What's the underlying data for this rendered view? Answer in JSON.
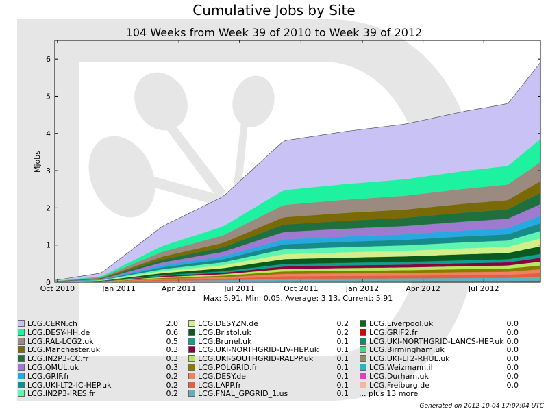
{
  "header": {
    "title": "Cumulative Jobs by Site",
    "subtitle": "104 Weeks from Week 39 of 2010 to Week 39 of 2012"
  },
  "stats_text": "Max: 5.91, Min: 0.05, Average: 3.13, Current: 5.91",
  "footer_text": "Generated on 2012-10-04 17:07:04 UTC",
  "legend": {
    "more_text": "... plus 13 more"
  },
  "chart_data": {
    "type": "area",
    "stacked": true,
    "ylabel": "Mjobs",
    "xlabel": "",
    "ylim": [
      0,
      6.5
    ],
    "yticks": [
      0,
      1,
      2,
      3,
      4,
      5,
      6
    ],
    "x_range": [
      "2010-09-27",
      "2012-09-24"
    ],
    "xticks": [
      {
        "date": "2010-10-01",
        "label": "Oct 2010"
      },
      {
        "date": "2011-01-01",
        "label": "Jan 2011"
      },
      {
        "date": "2011-04-01",
        "label": "Apr 2011"
      },
      {
        "date": "2011-07-01",
        "label": "Jul 2011"
      },
      {
        "date": "2011-10-01",
        "label": "Oct 2011"
      },
      {
        "date": "2012-01-01",
        "label": "Jan 2012"
      },
      {
        "date": "2012-04-01",
        "label": "Apr 2012"
      },
      {
        "date": "2012-07-01",
        "label": "Jul 2012"
      }
    ],
    "x_dates": [
      "2010-09-27",
      "2010-12-06",
      "2011-03-07",
      "2011-06-06",
      "2011-09-05",
      "2011-12-05",
      "2012-03-05",
      "2012-06-04",
      "2012-08-06",
      "2012-09-24"
    ],
    "total": [
      0.05,
      0.25,
      1.5,
      2.3,
      3.8,
      4.05,
      4.25,
      4.6,
      4.8,
      5.91
    ],
    "series": [
      {
        "name": "LCG.CERN.ch",
        "value": "2.0",
        "color": "#c9c2f5"
      },
      {
        "name": "LCG.DESY-HH.de",
        "value": "0.6",
        "color": "#1ef2a0"
      },
      {
        "name": "LCG.RAL-LCG2.uk",
        "value": "0.5",
        "color": "#9a8a80"
      },
      {
        "name": "LCG.Manchester.uk",
        "value": "0.3",
        "color": "#7a6a06"
      },
      {
        "name": "LCG.IN2P3-CC.fr",
        "value": "0.3",
        "color": "#1e7040"
      },
      {
        "name": "LCG.QMUL.uk",
        "value": "0.3",
        "color": "#a07ad0"
      },
      {
        "name": "LCG.GRIF.fr",
        "value": "0.2",
        "color": "#28a8e0"
      },
      {
        "name": "LCG.UKI-LT2-IC-HEP.uk",
        "value": "0.2",
        "color": "#178a8a"
      },
      {
        "name": "LCG.IN2P3-IRES.fr",
        "value": "0.2",
        "color": "#5ff5b0"
      },
      {
        "name": "LCG.DESYZN.de",
        "value": "0.2",
        "color": "#d2f08a"
      },
      {
        "name": "LCG.Bristol.uk",
        "value": "0.2",
        "color": "#0a5a20"
      },
      {
        "name": "LCG.Brunel.uk",
        "value": "0.1",
        "color": "#10a090"
      },
      {
        "name": "LCG.UKI-NORTHGRID-LIV-HEP.uk",
        "value": "0.1",
        "color": "#8a0040"
      },
      {
        "name": "LCG.UKI-SOUTHGRID-RALPP.uk",
        "value": "0.1",
        "color": "#b8e860"
      },
      {
        "name": "LCG.POLGRID.fr",
        "value": "0.1",
        "color": "#8a7a00"
      },
      {
        "name": "LCG.DESY.de",
        "value": "0.1",
        "color": "#f08060"
      },
      {
        "name": "LCG.LAPP.fr",
        "value": "0.1",
        "color": "#e06040"
      },
      {
        "name": "LCG.FNAL_GPGRID_1.us",
        "value": "0.1",
        "color": "#5fb0c0"
      },
      {
        "name": "LCG.Liverpool.uk",
        "value": "0.0",
        "color": "#0a6a20"
      },
      {
        "name": "LCG.GRIF2.fr",
        "value": "0.0",
        "color": "#c01010"
      },
      {
        "name": "LCG.UKI-NORTHGRID-LANCS-HEP.uk",
        "value": "0.0",
        "color": "#1a8a60"
      },
      {
        "name": "LCG.Birmingham.uk",
        "value": "0.0",
        "color": "#40d880"
      },
      {
        "name": "LCG.UKI-LT2-RHUL.uk",
        "value": "0.0",
        "color": "#908a60"
      },
      {
        "name": "LCG.Weizmann.il",
        "value": "0.0",
        "color": "#20b8c0"
      },
      {
        "name": "LCG.Durham.uk",
        "value": "0.0",
        "color": "#e040c0"
      },
      {
        "name": "LCG.Freiburg.de",
        "value": "0.0",
        "color": "#f0b8a0"
      }
    ]
  }
}
